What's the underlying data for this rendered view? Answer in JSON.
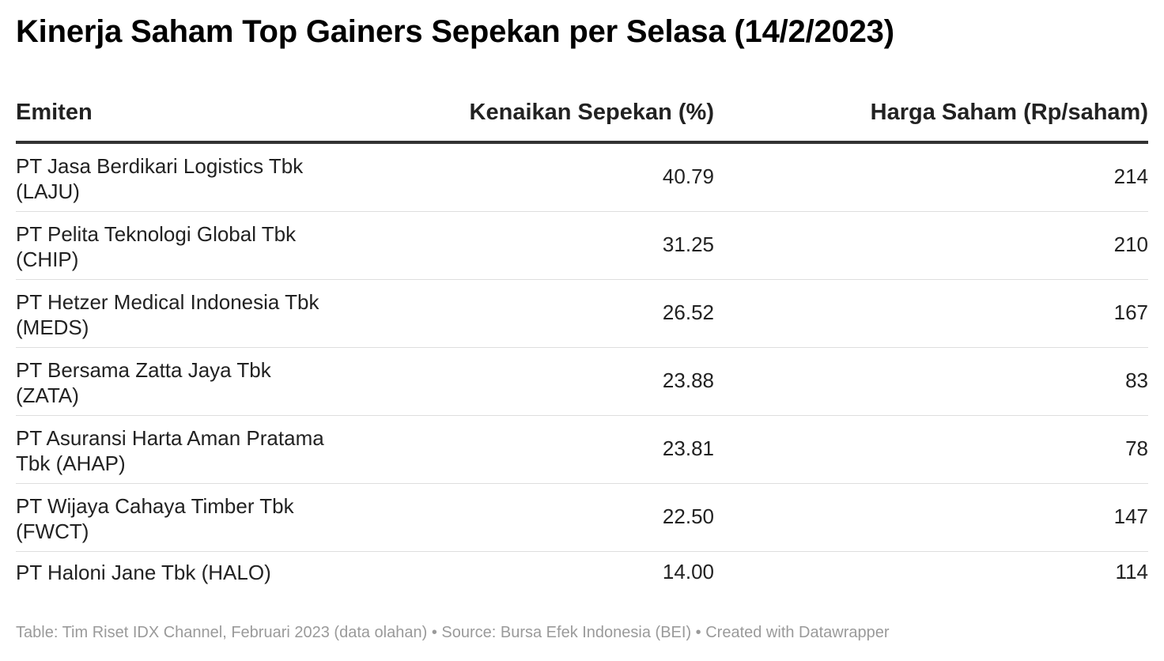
{
  "title": "Kinerja Saham Top Gainers Sepekan per Selasa (14/2/2023)",
  "footer": "Table: Tim Riset IDX Channel, Februari 2023 (data olahan) • Source: Bursa Efek Indonesia (BEI) • Created with Datawrapper",
  "chart_data": {
    "type": "table",
    "title": "Kinerja Saham Top Gainers Sepekan per Selasa (14/2/2023)",
    "columns": [
      "Emiten",
      "Kenaikan Sepekan (%)",
      "Harga Saham (Rp/saham)"
    ],
    "rows": [
      [
        "PT Jasa Berdikari Logistics Tbk (LAJU)",
        "40.79",
        "214"
      ],
      [
        "PT Pelita Teknologi Global Tbk (CHIP)",
        "31.25",
        "210"
      ],
      [
        "PT Hetzer Medical Indonesia Tbk (MEDS)",
        "26.52",
        "167"
      ],
      [
        "PT Bersama Zatta Jaya Tbk (ZATA)",
        "23.88",
        "83"
      ],
      [
        "PT Asuransi Harta Aman Pratama Tbk (AHAP)",
        "23.81",
        "78"
      ],
      [
        "PT Wijaya Cahaya Timber Tbk (FWCT)",
        "22.50",
        "147"
      ],
      [
        "PT Haloni Jane Tbk (HALO)",
        "14.00",
        "114"
      ]
    ]
  }
}
